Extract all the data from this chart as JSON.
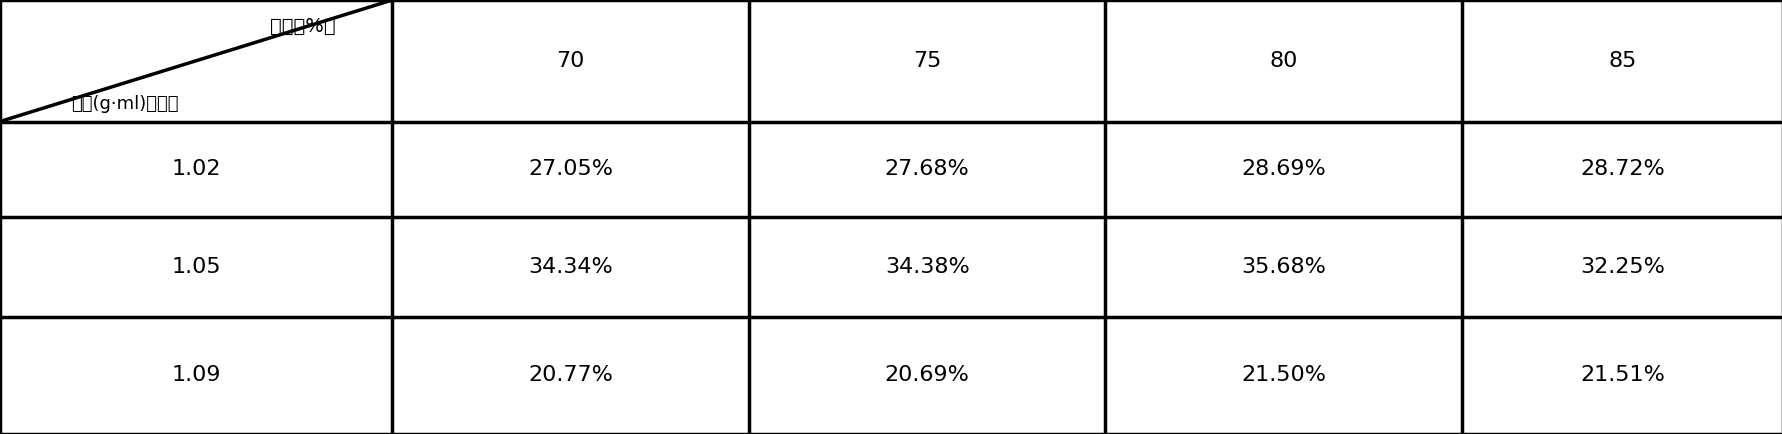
{
  "header_col_label_top": "醇度（%）",
  "header_col_label_bottom": "密度(g·ml)，含量",
  "col_headers": [
    "70",
    "75",
    "80",
    "85"
  ],
  "row_headers": [
    "1.02",
    "1.05",
    "1.09"
  ],
  "table_data": [
    [
      "27.05%",
      "27.68%",
      "28.69%",
      "28.72%"
    ],
    [
      "34.34%",
      "34.38%",
      "35.68%",
      "32.25%"
    ],
    [
      "20.77%",
      "20.69%",
      "21.50%",
      "21.51%"
    ]
  ],
  "bg_color": "#ffffff",
  "text_color": "#000000",
  "line_color": "#000000",
  "font_size": 16,
  "header_font_size": 15
}
